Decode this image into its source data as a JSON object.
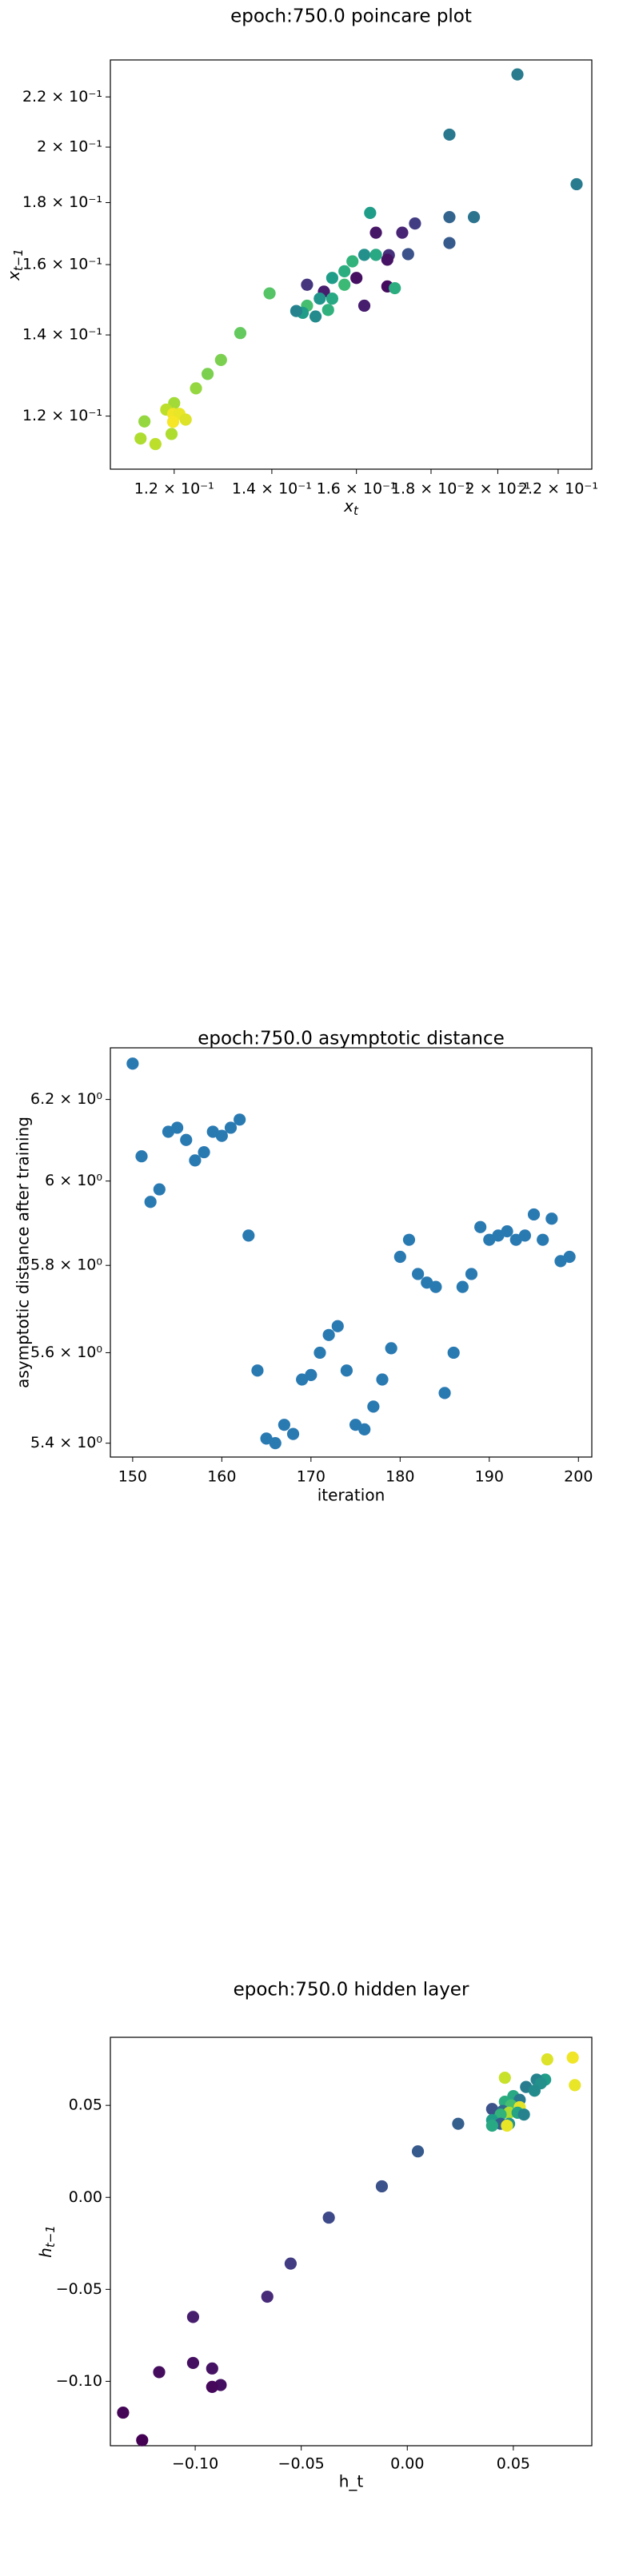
{
  "chart_data": [
    {
      "type": "scatter",
      "title": "epoch:750.0 poincare plot",
      "xlabel": "x_t",
      "ylabel": "x_{t-1}",
      "xscale": "log",
      "yscale": "log",
      "xlim": [
        0.1085,
        0.232
      ],
      "ylim": [
        0.1085,
        0.236
      ],
      "xticks": [
        0.12,
        0.14,
        0.16,
        0.18,
        0.2,
        0.22
      ],
      "xtick_labels": [
        "1.2 × 10⁻¹",
        "1.4 × 10⁻¹",
        "1.6 × 10⁻¹",
        "1.8 × 10⁻¹",
        "2 × 10⁻¹",
        "2.2 × 10⁻¹"
      ],
      "yticks": [
        0.12,
        0.14,
        0.16,
        0.18,
        0.2,
        0.22
      ],
      "ytick_labels": [
        "1.2 × 10⁻¹",
        "1.4 × 10⁻¹",
        "1.6 × 10⁻¹",
        "1.8 × 10⁻¹",
        "2 × 10⁻¹",
        "2.2 × 10⁻¹"
      ],
      "colormap": "viridis",
      "points": [
        {
          "x": 0.2063,
          "y": 0.2296,
          "c": 0.42
        },
        {
          "x": 0.2265,
          "y": 0.1864,
          "c": 0.42
        },
        {
          "x": 0.1853,
          "y": 0.2048,
          "c": 0.4
        },
        {
          "x": 0.1926,
          "y": 0.1751,
          "c": 0.38
        },
        {
          "x": 0.1853,
          "y": 0.1751,
          "c": 0.32
        },
        {
          "x": 0.1853,
          "y": 0.1667,
          "c": 0.28
        },
        {
          "x": 0.1755,
          "y": 0.173,
          "c": 0.18
        },
        {
          "x": 0.172,
          "y": 0.17,
          "c": 0.1
        },
        {
          "x": 0.165,
          "y": 0.17,
          "c": 0.06
        },
        {
          "x": 0.1736,
          "y": 0.1632,
          "c": 0.25
        },
        {
          "x": 0.1684,
          "y": 0.1629,
          "c": 0.14
        },
        {
          "x": 0.162,
          "y": 0.163,
          "c": 0.5
        },
        {
          "x": 0.165,
          "y": 0.163,
          "c": 0.6
        },
        {
          "x": 0.168,
          "y": 0.1615,
          "c": 0.05
        },
        {
          "x": 0.157,
          "y": 0.158,
          "c": 0.62
        },
        {
          "x": 0.154,
          "y": 0.156,
          "c": 0.55
        },
        {
          "x": 0.16,
          "y": 0.156,
          "c": 0.04
        },
        {
          "x": 0.159,
          "y": 0.161,
          "c": 0.65
        },
        {
          "x": 0.157,
          "y": 0.154,
          "c": 0.68
        },
        {
          "x": 0.152,
          "y": 0.152,
          "c": 0.08
        },
        {
          "x": 0.148,
          "y": 0.154,
          "c": 0.15
        },
        {
          "x": 0.154,
          "y": 0.15,
          "c": 0.6
        },
        {
          "x": 0.151,
          "y": 0.15,
          "c": 0.52
        },
        {
          "x": 0.168,
          "y": 0.1535,
          "c": 0.03
        },
        {
          "x": 0.17,
          "y": 0.153,
          "c": 0.62
        },
        {
          "x": 0.148,
          "y": 0.148,
          "c": 0.7
        },
        {
          "x": 0.162,
          "y": 0.148,
          "c": 0.08
        },
        {
          "x": 0.153,
          "y": 0.1468,
          "c": 0.64
        },
        {
          "x": 0.147,
          "y": 0.146,
          "c": 0.55
        },
        {
          "x": 0.1455,
          "y": 0.1465,
          "c": 0.45
        },
        {
          "x": 0.15,
          "y": 0.145,
          "c": 0.48
        },
        {
          "x": 0.1635,
          "y": 0.1765,
          "c": 0.55
        },
        {
          "x": 0.1395,
          "y": 0.1515,
          "c": 0.73
        },
        {
          "x": 0.1332,
          "y": 0.1405,
          "c": 0.76
        },
        {
          "x": 0.1292,
          "y": 0.1335,
          "c": 0.8
        },
        {
          "x": 0.1265,
          "y": 0.13,
          "c": 0.8
        },
        {
          "x": 0.1242,
          "y": 0.1265,
          "c": 0.84
        },
        {
          "x": 0.12,
          "y": 0.123,
          "c": 0.86
        },
        {
          "x": 0.1185,
          "y": 0.1215,
          "c": 0.9
        },
        {
          "x": 0.1198,
          "y": 0.1205,
          "c": 0.98
        },
        {
          "x": 0.121,
          "y": 0.1205,
          "c": 0.97
        },
        {
          "x": 0.1222,
          "y": 0.1192,
          "c": 0.95
        },
        {
          "x": 0.1198,
          "y": 0.1187,
          "c": 0.99
        },
        {
          "x": 0.1145,
          "y": 0.1188,
          "c": 0.84
        },
        {
          "x": 0.1195,
          "y": 0.116,
          "c": 0.88
        },
        {
          "x": 0.1138,
          "y": 0.115,
          "c": 0.88
        },
        {
          "x": 0.1165,
          "y": 0.1138,
          "c": 0.9
        }
      ]
    },
    {
      "type": "scatter",
      "title": "epoch:750.0 asymptotic distance",
      "xlabel": "iteration",
      "ylabel": "asymptotic distance after training",
      "xscale": "linear",
      "yscale": "log",
      "xlim": [
        147.5,
        201.5
      ],
      "ylim": [
        5.37,
        6.33
      ],
      "xticks": [
        150,
        160,
        170,
        180,
        190,
        200
      ],
      "xtick_labels": [
        "150",
        "160",
        "170",
        "180",
        "190",
        "200"
      ],
      "yticks": [
        5.4,
        5.6,
        5.8,
        6.0,
        6.2
      ],
      "ytick_labels": [
        "5.4 × 10⁰",
        "5.6 × 10⁰",
        "5.8 × 10⁰",
        "6 × 10⁰",
        "6.2 × 10⁰"
      ],
      "color": "#2a7ab2",
      "points": [
        {
          "x": 150,
          "y": 6.29
        },
        {
          "x": 151,
          "y": 6.06
        },
        {
          "x": 152,
          "y": 5.95
        },
        {
          "x": 153,
          "y": 5.98
        },
        {
          "x": 154,
          "y": 6.12
        },
        {
          "x": 155,
          "y": 6.13
        },
        {
          "x": 156,
          "y": 6.1
        },
        {
          "x": 157,
          "y": 6.05
        },
        {
          "x": 158,
          "y": 6.07
        },
        {
          "x": 159,
          "y": 6.12
        },
        {
          "x": 160,
          "y": 6.11
        },
        {
          "x": 161,
          "y": 6.13
        },
        {
          "x": 162,
          "y": 6.15
        },
        {
          "x": 163,
          "y": 5.87
        },
        {
          "x": 164,
          "y": 5.56
        },
        {
          "x": 165,
          "y": 5.41
        },
        {
          "x": 166,
          "y": 5.4
        },
        {
          "x": 167,
          "y": 5.44
        },
        {
          "x": 168,
          "y": 5.42
        },
        {
          "x": 169,
          "y": 5.54
        },
        {
          "x": 170,
          "y": 5.55
        },
        {
          "x": 171,
          "y": 5.6
        },
        {
          "x": 172,
          "y": 5.64
        },
        {
          "x": 173,
          "y": 5.66
        },
        {
          "x": 174,
          "y": 5.56
        },
        {
          "x": 175,
          "y": 5.44
        },
        {
          "x": 176,
          "y": 5.43
        },
        {
          "x": 177,
          "y": 5.48
        },
        {
          "x": 178,
          "y": 5.54
        },
        {
          "x": 179,
          "y": 5.61
        },
        {
          "x": 180,
          "y": 5.82
        },
        {
          "x": 181,
          "y": 5.86
        },
        {
          "x": 182,
          "y": 5.78
        },
        {
          "x": 183,
          "y": 5.76
        },
        {
          "x": 184,
          "y": 5.75
        },
        {
          "x": 185,
          "y": 5.51
        },
        {
          "x": 186,
          "y": 5.6
        },
        {
          "x": 187,
          "y": 5.75
        },
        {
          "x": 188,
          "y": 5.78
        },
        {
          "x": 189,
          "y": 5.89
        },
        {
          "x": 190,
          "y": 5.86
        },
        {
          "x": 191,
          "y": 5.87
        },
        {
          "x": 192,
          "y": 5.88
        },
        {
          "x": 193,
          "y": 5.86
        },
        {
          "x": 194,
          "y": 5.87
        },
        {
          "x": 195,
          "y": 5.92
        },
        {
          "x": 196,
          "y": 5.86
        },
        {
          "x": 197,
          "y": 5.91
        },
        {
          "x": 198,
          "y": 5.81
        },
        {
          "x": 199,
          "y": 5.82
        }
      ]
    },
    {
      "type": "scatter",
      "title": "epoch:750.0 hidden layer",
      "xlabel": "h_t",
      "ylabel": "h_{t-1}",
      "xscale": "linear",
      "yscale": "linear",
      "xlim": [
        -0.14,
        0.087
      ],
      "ylim": [
        -0.135,
        0.087
      ],
      "xticks": [
        -0.1,
        -0.05,
        0.0,
        0.05
      ],
      "xtick_labels": [
        "−0.10",
        "−0.05",
        "0.00",
        "0.05"
      ],
      "yticks": [
        -0.1,
        -0.05,
        0.0,
        0.05
      ],
      "ytick_labels": [
        "−0.10",
        "−0.05",
        "0.00",
        "0.05"
      ],
      "colormap": "viridis",
      "points": [
        {
          "x": 0.078,
          "y": 0.076,
          "c": 0.98
        },
        {
          "x": 0.066,
          "y": 0.075,
          "c": 0.95
        },
        {
          "x": 0.079,
          "y": 0.061,
          "c": 0.97
        },
        {
          "x": 0.046,
          "y": 0.065,
          "c": 0.92
        },
        {
          "x": 0.065,
          "y": 0.064,
          "c": 0.55
        },
        {
          "x": 0.061,
          "y": 0.064,
          "c": 0.45
        },
        {
          "x": 0.063,
          "y": 0.062,
          "c": 0.5
        },
        {
          "x": 0.056,
          "y": 0.06,
          "c": 0.42
        },
        {
          "x": 0.06,
          "y": 0.058,
          "c": 0.48
        },
        {
          "x": 0.05,
          "y": 0.055,
          "c": 0.6
        },
        {
          "x": 0.053,
          "y": 0.053,
          "c": 0.4
        },
        {
          "x": 0.046,
          "y": 0.052,
          "c": 0.62
        },
        {
          "x": 0.049,
          "y": 0.05,
          "c": 0.7
        },
        {
          "x": 0.053,
          "y": 0.049,
          "c": 0.96
        },
        {
          "x": 0.04,
          "y": 0.048,
          "c": 0.25
        },
        {
          "x": 0.045,
          "y": 0.047,
          "c": 0.35
        },
        {
          "x": 0.048,
          "y": 0.046,
          "c": 0.88
        },
        {
          "x": 0.052,
          "y": 0.046,
          "c": 0.58
        },
        {
          "x": 0.044,
          "y": 0.045,
          "c": 0.65
        },
        {
          "x": 0.055,
          "y": 0.045,
          "c": 0.45
        },
        {
          "x": 0.04,
          "y": 0.042,
          "c": 0.55
        },
        {
          "x": 0.044,
          "y": 0.04,
          "c": 0.3
        },
        {
          "x": 0.048,
          "y": 0.04,
          "c": 0.52
        },
        {
          "x": 0.04,
          "y": 0.039,
          "c": 0.6
        },
        {
          "x": 0.047,
          "y": 0.039,
          "c": 0.97
        },
        {
          "x": 0.024,
          "y": 0.04,
          "c": 0.3
        },
        {
          "x": 0.005,
          "y": 0.025,
          "c": 0.28
        },
        {
          "x": -0.012,
          "y": 0.006,
          "c": 0.25
        },
        {
          "x": -0.037,
          "y": -0.011,
          "c": 0.22
        },
        {
          "x": -0.055,
          "y": -0.036,
          "c": 0.18
        },
        {
          "x": -0.066,
          "y": -0.054,
          "c": 0.12
        },
        {
          "x": -0.101,
          "y": -0.065,
          "c": 0.08
        },
        {
          "x": -0.101,
          "y": -0.09,
          "c": 0.04
        },
        {
          "x": -0.092,
          "y": -0.093,
          "c": 0.05
        },
        {
          "x": -0.117,
          "y": -0.095,
          "c": 0.03
        },
        {
          "x": -0.088,
          "y": -0.102,
          "c": 0.04
        },
        {
          "x": -0.092,
          "y": -0.103,
          "c": 0.02
        },
        {
          "x": -0.134,
          "y": -0.117,
          "c": 0.01
        },
        {
          "x": -0.125,
          "y": -0.132,
          "c": 0.0
        }
      ]
    }
  ]
}
